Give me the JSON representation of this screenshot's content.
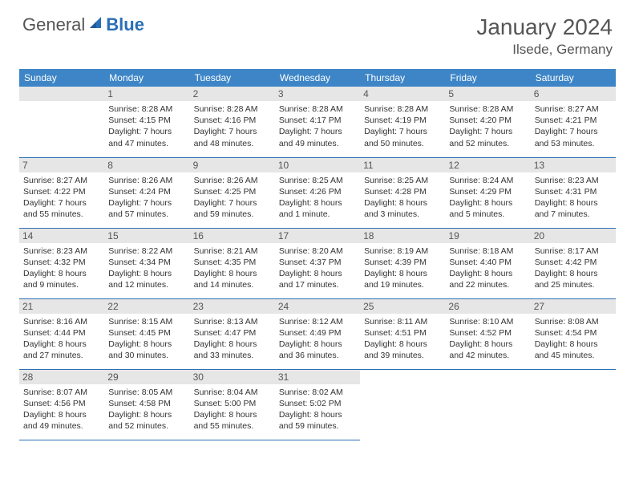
{
  "logo": {
    "general": "General",
    "blue": "Blue"
  },
  "title": "January 2024",
  "subtitle": "Ilsede, Germany",
  "colors": {
    "header_bg": "#3d85c6",
    "header_text": "#ffffff",
    "daynum_bg": "#e6e6e6",
    "rule": "#2a6fb5",
    "text": "#333333",
    "title_text": "#555555"
  },
  "typography": {
    "title_fontsize": 28,
    "subtitle_fontsize": 17,
    "dayhead_fontsize": 12,
    "daynum_fontsize": 12,
    "info_fontsize": 10.5
  },
  "day_names": [
    "Sunday",
    "Monday",
    "Tuesday",
    "Wednesday",
    "Thursday",
    "Friday",
    "Saturday"
  ],
  "weeks": [
    [
      {
        "n": "",
        "sunrise": "",
        "sunset": "",
        "daylight": ""
      },
      {
        "n": "1",
        "sunrise": "Sunrise: 8:28 AM",
        "sunset": "Sunset: 4:15 PM",
        "daylight": "Daylight: 7 hours and 47 minutes."
      },
      {
        "n": "2",
        "sunrise": "Sunrise: 8:28 AM",
        "sunset": "Sunset: 4:16 PM",
        "daylight": "Daylight: 7 hours and 48 minutes."
      },
      {
        "n": "3",
        "sunrise": "Sunrise: 8:28 AM",
        "sunset": "Sunset: 4:17 PM",
        "daylight": "Daylight: 7 hours and 49 minutes."
      },
      {
        "n": "4",
        "sunrise": "Sunrise: 8:28 AM",
        "sunset": "Sunset: 4:19 PM",
        "daylight": "Daylight: 7 hours and 50 minutes."
      },
      {
        "n": "5",
        "sunrise": "Sunrise: 8:28 AM",
        "sunset": "Sunset: 4:20 PM",
        "daylight": "Daylight: 7 hours and 52 minutes."
      },
      {
        "n": "6",
        "sunrise": "Sunrise: 8:27 AM",
        "sunset": "Sunset: 4:21 PM",
        "daylight": "Daylight: 7 hours and 53 minutes."
      }
    ],
    [
      {
        "n": "7",
        "sunrise": "Sunrise: 8:27 AM",
        "sunset": "Sunset: 4:22 PM",
        "daylight": "Daylight: 7 hours and 55 minutes."
      },
      {
        "n": "8",
        "sunrise": "Sunrise: 8:26 AM",
        "sunset": "Sunset: 4:24 PM",
        "daylight": "Daylight: 7 hours and 57 minutes."
      },
      {
        "n": "9",
        "sunrise": "Sunrise: 8:26 AM",
        "sunset": "Sunset: 4:25 PM",
        "daylight": "Daylight: 7 hours and 59 minutes."
      },
      {
        "n": "10",
        "sunrise": "Sunrise: 8:25 AM",
        "sunset": "Sunset: 4:26 PM",
        "daylight": "Daylight: 8 hours and 1 minute."
      },
      {
        "n": "11",
        "sunrise": "Sunrise: 8:25 AM",
        "sunset": "Sunset: 4:28 PM",
        "daylight": "Daylight: 8 hours and 3 minutes."
      },
      {
        "n": "12",
        "sunrise": "Sunrise: 8:24 AM",
        "sunset": "Sunset: 4:29 PM",
        "daylight": "Daylight: 8 hours and 5 minutes."
      },
      {
        "n": "13",
        "sunrise": "Sunrise: 8:23 AM",
        "sunset": "Sunset: 4:31 PM",
        "daylight": "Daylight: 8 hours and 7 minutes."
      }
    ],
    [
      {
        "n": "14",
        "sunrise": "Sunrise: 8:23 AM",
        "sunset": "Sunset: 4:32 PM",
        "daylight": "Daylight: 8 hours and 9 minutes."
      },
      {
        "n": "15",
        "sunrise": "Sunrise: 8:22 AM",
        "sunset": "Sunset: 4:34 PM",
        "daylight": "Daylight: 8 hours and 12 minutes."
      },
      {
        "n": "16",
        "sunrise": "Sunrise: 8:21 AM",
        "sunset": "Sunset: 4:35 PM",
        "daylight": "Daylight: 8 hours and 14 minutes."
      },
      {
        "n": "17",
        "sunrise": "Sunrise: 8:20 AM",
        "sunset": "Sunset: 4:37 PM",
        "daylight": "Daylight: 8 hours and 17 minutes."
      },
      {
        "n": "18",
        "sunrise": "Sunrise: 8:19 AM",
        "sunset": "Sunset: 4:39 PM",
        "daylight": "Daylight: 8 hours and 19 minutes."
      },
      {
        "n": "19",
        "sunrise": "Sunrise: 8:18 AM",
        "sunset": "Sunset: 4:40 PM",
        "daylight": "Daylight: 8 hours and 22 minutes."
      },
      {
        "n": "20",
        "sunrise": "Sunrise: 8:17 AM",
        "sunset": "Sunset: 4:42 PM",
        "daylight": "Daylight: 8 hours and 25 minutes."
      }
    ],
    [
      {
        "n": "21",
        "sunrise": "Sunrise: 8:16 AM",
        "sunset": "Sunset: 4:44 PM",
        "daylight": "Daylight: 8 hours and 27 minutes."
      },
      {
        "n": "22",
        "sunrise": "Sunrise: 8:15 AM",
        "sunset": "Sunset: 4:45 PM",
        "daylight": "Daylight: 8 hours and 30 minutes."
      },
      {
        "n": "23",
        "sunrise": "Sunrise: 8:13 AM",
        "sunset": "Sunset: 4:47 PM",
        "daylight": "Daylight: 8 hours and 33 minutes."
      },
      {
        "n": "24",
        "sunrise": "Sunrise: 8:12 AM",
        "sunset": "Sunset: 4:49 PM",
        "daylight": "Daylight: 8 hours and 36 minutes."
      },
      {
        "n": "25",
        "sunrise": "Sunrise: 8:11 AM",
        "sunset": "Sunset: 4:51 PM",
        "daylight": "Daylight: 8 hours and 39 minutes."
      },
      {
        "n": "26",
        "sunrise": "Sunrise: 8:10 AM",
        "sunset": "Sunset: 4:52 PM",
        "daylight": "Daylight: 8 hours and 42 minutes."
      },
      {
        "n": "27",
        "sunrise": "Sunrise: 8:08 AM",
        "sunset": "Sunset: 4:54 PM",
        "daylight": "Daylight: 8 hours and 45 minutes."
      }
    ],
    [
      {
        "n": "28",
        "sunrise": "Sunrise: 8:07 AM",
        "sunset": "Sunset: 4:56 PM",
        "daylight": "Daylight: 8 hours and 49 minutes."
      },
      {
        "n": "29",
        "sunrise": "Sunrise: 8:05 AM",
        "sunset": "Sunset: 4:58 PM",
        "daylight": "Daylight: 8 hours and 52 minutes."
      },
      {
        "n": "30",
        "sunrise": "Sunrise: 8:04 AM",
        "sunset": "Sunset: 5:00 PM",
        "daylight": "Daylight: 8 hours and 55 minutes."
      },
      {
        "n": "31",
        "sunrise": "Sunrise: 8:02 AM",
        "sunset": "Sunset: 5:02 PM",
        "daylight": "Daylight: 8 hours and 59 minutes."
      },
      {
        "n": "",
        "sunrise": "",
        "sunset": "",
        "daylight": ""
      },
      {
        "n": "",
        "sunrise": "",
        "sunset": "",
        "daylight": ""
      },
      {
        "n": "",
        "sunrise": "",
        "sunset": "",
        "daylight": ""
      }
    ]
  ]
}
